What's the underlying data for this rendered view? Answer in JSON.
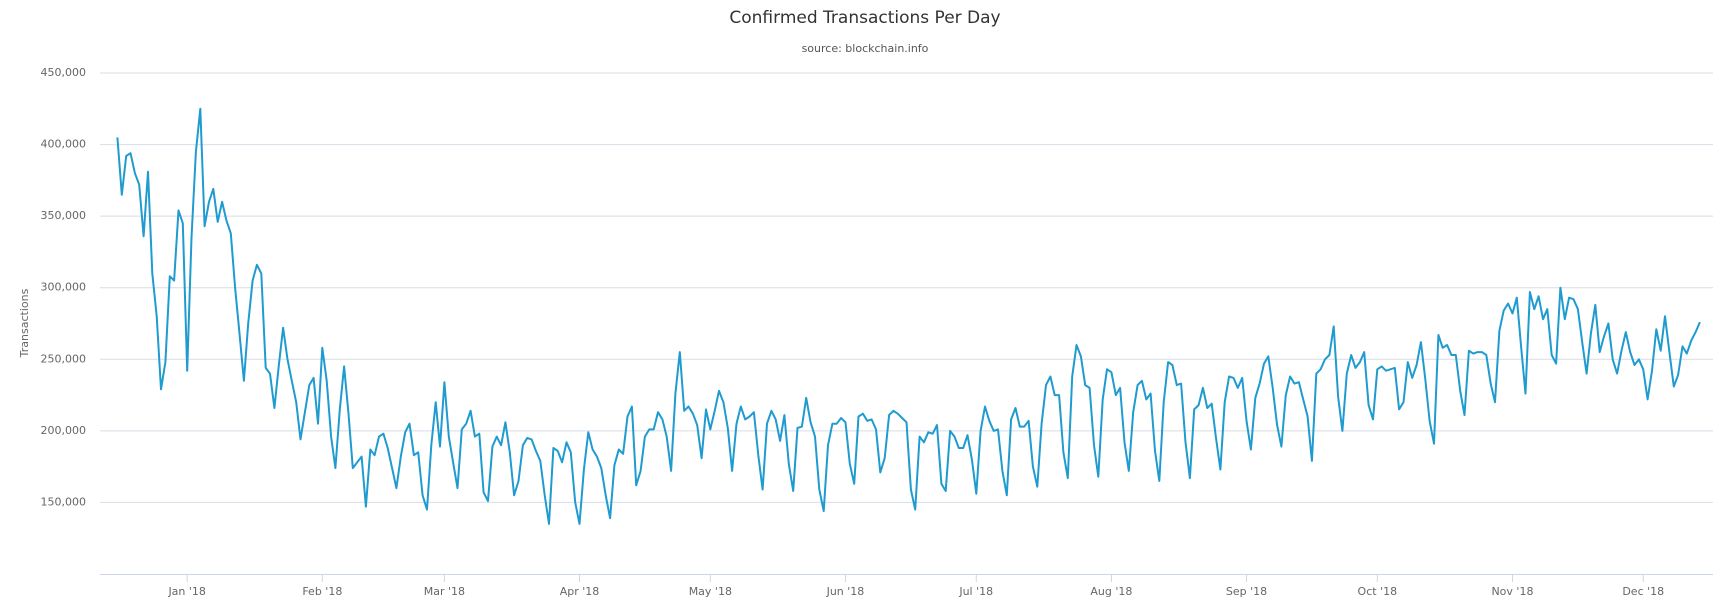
{
  "chart_data": {
    "type": "line",
    "title": "Confirmed Transactions Per Day",
    "subtitle": "source: blockchain.info",
    "y_label": "Transactions",
    "color": "#1f9bcf",
    "grid": true,
    "xlim": [
      -4,
      366
    ],
    "ylim": [
      100000,
      450000
    ],
    "yticks": [
      {
        "value": 150000,
        "label": "150,000"
      },
      {
        "value": 200000,
        "label": "200,000"
      },
      {
        "value": 250000,
        "label": "250,000"
      },
      {
        "value": 300000,
        "label": "300,000"
      },
      {
        "value": 350000,
        "label": "350,000"
      },
      {
        "value": 400000,
        "label": "400,000"
      },
      {
        "value": 450000,
        "label": "450,000"
      }
    ],
    "xticks": [
      {
        "value": 16,
        "label": "Jan '18"
      },
      {
        "value": 47,
        "label": "Feb '18"
      },
      {
        "value": 75,
        "label": "Mar '18"
      },
      {
        "value": 106,
        "label": "Apr '18"
      },
      {
        "value": 136,
        "label": "May '18"
      },
      {
        "value": 167,
        "label": "Jun '18"
      },
      {
        "value": 197,
        "label": "Jul '18"
      },
      {
        "value": 228,
        "label": "Aug '18"
      },
      {
        "value": 259,
        "label": "Sep '18"
      },
      {
        "value": 289,
        "label": "Oct '18"
      },
      {
        "value": 320,
        "label": "Nov '18"
      },
      {
        "value": 350,
        "label": "Dec '18"
      }
    ],
    "values": [
      405000,
      365000,
      392000,
      394000,
      380000,
      372000,
      336000,
      381000,
      310000,
      280000,
      229000,
      248000,
      308000,
      305000,
      354000,
      345000,
      242000,
      335000,
      395000,
      425000,
      343000,
      360000,
      369000,
      346000,
      360000,
      347000,
      338000,
      300000,
      268000,
      235000,
      275000,
      305000,
      316000,
      310000,
      244000,
      240000,
      216000,
      245000,
      272000,
      250000,
      235000,
      220000,
      194000,
      213000,
      232000,
      237000,
      205000,
      258000,
      235000,
      196000,
      174000,
      215000,
      245000,
      212000,
      174000,
      178000,
      182000,
      147000,
      187000,
      183000,
      196000,
      198000,
      188000,
      174000,
      160000,
      182000,
      199000,
      205000,
      183000,
      185000,
      155000,
      145000,
      190000,
      220000,
      189000,
      234000,
      196000,
      178000,
      160000,
      201000,
      205000,
      214000,
      196000,
      198000,
      157000,
      151000,
      189000,
      196000,
      190000,
      206000,
      185000,
      155000,
      165000,
      190000,
      195000,
      194000,
      186000,
      179000,
      155000,
      135000,
      188000,
      186000,
      178000,
      192000,
      185000,
      150000,
      135000,
      173000,
      199000,
      187000,
      182000,
      174000,
      155000,
      139000,
      176000,
      187000,
      184000,
      210000,
      217000,
      162000,
      172000,
      196000,
      201000,
      201000,
      213000,
      208000,
      196000,
      172000,
      226000,
      255000,
      214000,
      217000,
      212000,
      204000,
      181000,
      215000,
      201000,
      214000,
      228000,
      220000,
      202000,
      172000,
      205000,
      217000,
      208000,
      210000,
      213000,
      183000,
      159000,
      205000,
      214000,
      208000,
      193000,
      211000,
      177000,
      158000,
      202000,
      203000,
      223000,
      206000,
      196000,
      159000,
      144000,
      190000,
      205000,
      205000,
      209000,
      206000,
      177000,
      163000,
      210000,
      212000,
      207000,
      208000,
      201000,
      171000,
      181000,
      211000,
      214000,
      212000,
      209000,
      206000,
      159000,
      145000,
      196000,
      192000,
      199000,
      198000,
      204000,
      163000,
      158000,
      200000,
      196000,
      188000,
      188000,
      197000,
      180000,
      156000,
      200000,
      217000,
      207000,
      200000,
      201000,
      172000,
      155000,
      208000,
      216000,
      203000,
      203000,
      207000,
      175000,
      161000,
      205000,
      232000,
      238000,
      225000,
      225000,
      185000,
      167000,
      238000,
      260000,
      252000,
      232000,
      230000,
      190000,
      168000,
      222000,
      243000,
      241000,
      225000,
      230000,
      192000,
      172000,
      213000,
      232000,
      235000,
      222000,
      226000,
      186000,
      165000,
      220000,
      248000,
      246000,
      232000,
      233000,
      192000,
      167000,
      215000,
      218000,
      230000,
      216000,
      219000,
      195000,
      173000,
      220000,
      238000,
      237000,
      230000,
      237000,
      207000,
      187000,
      223000,
      233000,
      247000,
      252000,
      230000,
      204000,
      189000,
      225000,
      238000,
      233000,
      234000,
      222000,
      210000,
      179000,
      240000,
      243000,
      250000,
      253000,
      273000,
      224000,
      200000,
      240000,
      253000,
      244000,
      248000,
      255000,
      218000,
      208000,
      243000,
      245000,
      242000,
      243000,
      244000,
      215000,
      220000,
      248000,
      237000,
      246000,
      262000,
      236000,
      207000,
      191000,
      267000,
      258000,
      260000,
      253000,
      253000,
      228000,
      211000,
      256000,
      254000,
      255000,
      255000,
      253000,
      233000,
      220000,
      270000,
      284000,
      289000,
      282000,
      293000,
      258000,
      226000,
      297000,
      285000,
      294000,
      278000,
      285000,
      253000,
      247000,
      300000,
      278000,
      293000,
      292000,
      285000,
      262000,
      240000,
      268000,
      288000,
      255000,
      266000,
      275000,
      250000,
      240000,
      256000,
      269000,
      255000,
      246000,
      250000,
      243000,
      222000,
      242000,
      271000,
      256000,
      280000,
      255000,
      231000,
      239000,
      259000,
      254000,
      263000,
      269000,
      276000
    ]
  }
}
